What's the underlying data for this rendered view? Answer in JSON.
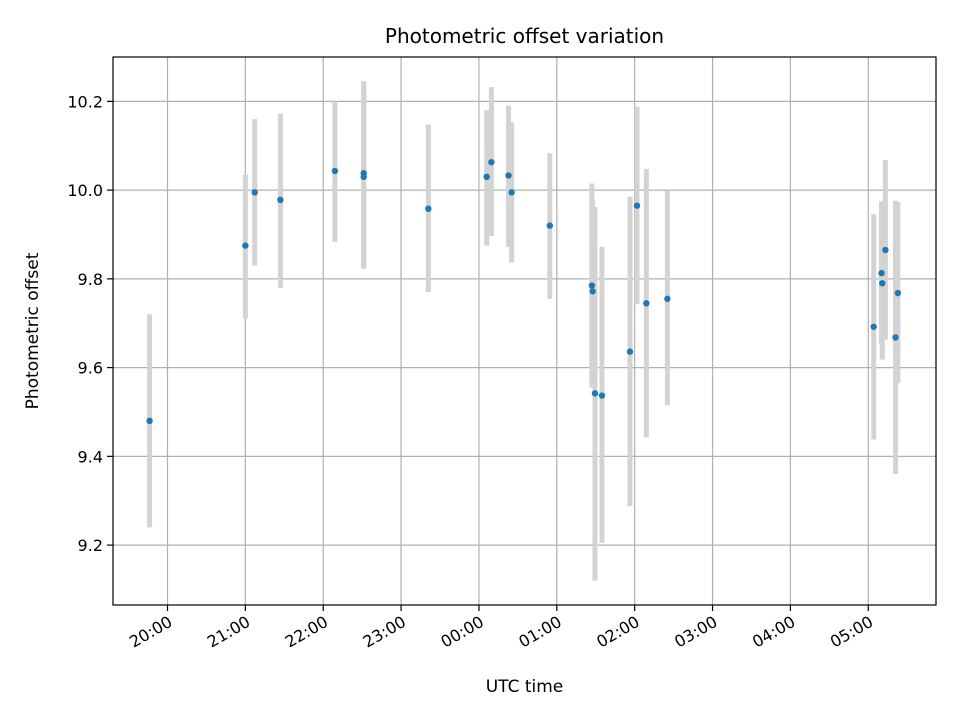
{
  "chart_data": {
    "type": "scatter",
    "title": "Photometric offset variation",
    "xlabel": "UTC time",
    "ylabel": "Photometric offset",
    "x_unit": "UTC hour",
    "xlim": [
      19.3,
      29.87
    ],
    "ylim": [
      9.065,
      10.3
    ],
    "xticks": [
      20,
      21,
      22,
      23,
      24,
      25,
      26,
      27,
      28,
      29
    ],
    "xtick_labels": [
      "20:00",
      "21:00",
      "22:00",
      "23:00",
      "00:00",
      "01:00",
      "02:00",
      "03:00",
      "04:00",
      "05:00"
    ],
    "yticks": [
      9.2,
      9.4,
      9.6,
      9.8,
      10.0,
      10.2
    ],
    "ytick_labels": [
      "9.2",
      "9.4",
      "9.6",
      "9.8",
      "10.0",
      "10.2"
    ],
    "grid": true,
    "colors": {
      "point": "#1f77b4",
      "errorbar": "#d3d3d3",
      "grid": "#b0b0b0"
    },
    "points": [
      {
        "x": 19.77,
        "y": 9.48,
        "ylow": 9.24,
        "yhigh": 9.72
      },
      {
        "x": 21.0,
        "y": 9.875,
        "ylow": 9.71,
        "yhigh": 10.035
      },
      {
        "x": 21.12,
        "y": 9.995,
        "ylow": 9.83,
        "yhigh": 10.16
      },
      {
        "x": 21.45,
        "y": 9.978,
        "ylow": 9.78,
        "yhigh": 10.172
      },
      {
        "x": 22.15,
        "y": 10.043,
        "ylow": 9.883,
        "yhigh": 10.2
      },
      {
        "x": 22.52,
        "y": 10.038,
        "ylow": 9.823,
        "yhigh": 10.245
      },
      {
        "x": 22.52,
        "y": 10.03,
        "ylow": 9.823,
        "yhigh": 10.245
      },
      {
        "x": 23.35,
        "y": 9.958,
        "ylow": 9.77,
        "yhigh": 10.148
      },
      {
        "x": 24.1,
        "y": 10.03,
        "ylow": 9.875,
        "yhigh": 10.18
      },
      {
        "x": 24.16,
        "y": 10.063,
        "ylow": 9.897,
        "yhigh": 10.232
      },
      {
        "x": 24.38,
        "y": 10.033,
        "ylow": 9.872,
        "yhigh": 10.19
      },
      {
        "x": 24.42,
        "y": 9.995,
        "ylow": 9.837,
        "yhigh": 10.153
      },
      {
        "x": 24.91,
        "y": 9.92,
        "ylow": 9.755,
        "yhigh": 10.083
      },
      {
        "x": 25.45,
        "y": 9.785,
        "ylow": 9.555,
        "yhigh": 10.015
      },
      {
        "x": 25.46,
        "y": 9.772,
        "ylow": 9.56,
        "yhigh": 9.98
      },
      {
        "x": 25.49,
        "y": 9.542,
        "ylow": 9.12,
        "yhigh": 9.962
      },
      {
        "x": 25.58,
        "y": 9.537,
        "ylow": 9.205,
        "yhigh": 9.872
      },
      {
        "x": 25.94,
        "y": 9.636,
        "ylow": 9.288,
        "yhigh": 9.985
      },
      {
        "x": 26.03,
        "y": 9.965,
        "ylow": 9.743,
        "yhigh": 10.188
      },
      {
        "x": 26.15,
        "y": 9.745,
        "ylow": 9.443,
        "yhigh": 10.048
      },
      {
        "x": 26.42,
        "y": 9.755,
        "ylow": 9.515,
        "yhigh": 9.998
      },
      {
        "x": 29.07,
        "y": 9.692,
        "ylow": 9.438,
        "yhigh": 9.946
      },
      {
        "x": 29.17,
        "y": 9.813,
        "ylow": 9.653,
        "yhigh": 9.975
      },
      {
        "x": 29.18,
        "y": 9.79,
        "ylow": 9.618,
        "yhigh": 9.965
      },
      {
        "x": 29.22,
        "y": 9.865,
        "ylow": 9.663,
        "yhigh": 10.068
      },
      {
        "x": 29.35,
        "y": 9.668,
        "ylow": 9.36,
        "yhigh": 9.976
      },
      {
        "x": 29.38,
        "y": 9.768,
        "ylow": 9.565,
        "yhigh": 9.973
      }
    ]
  }
}
